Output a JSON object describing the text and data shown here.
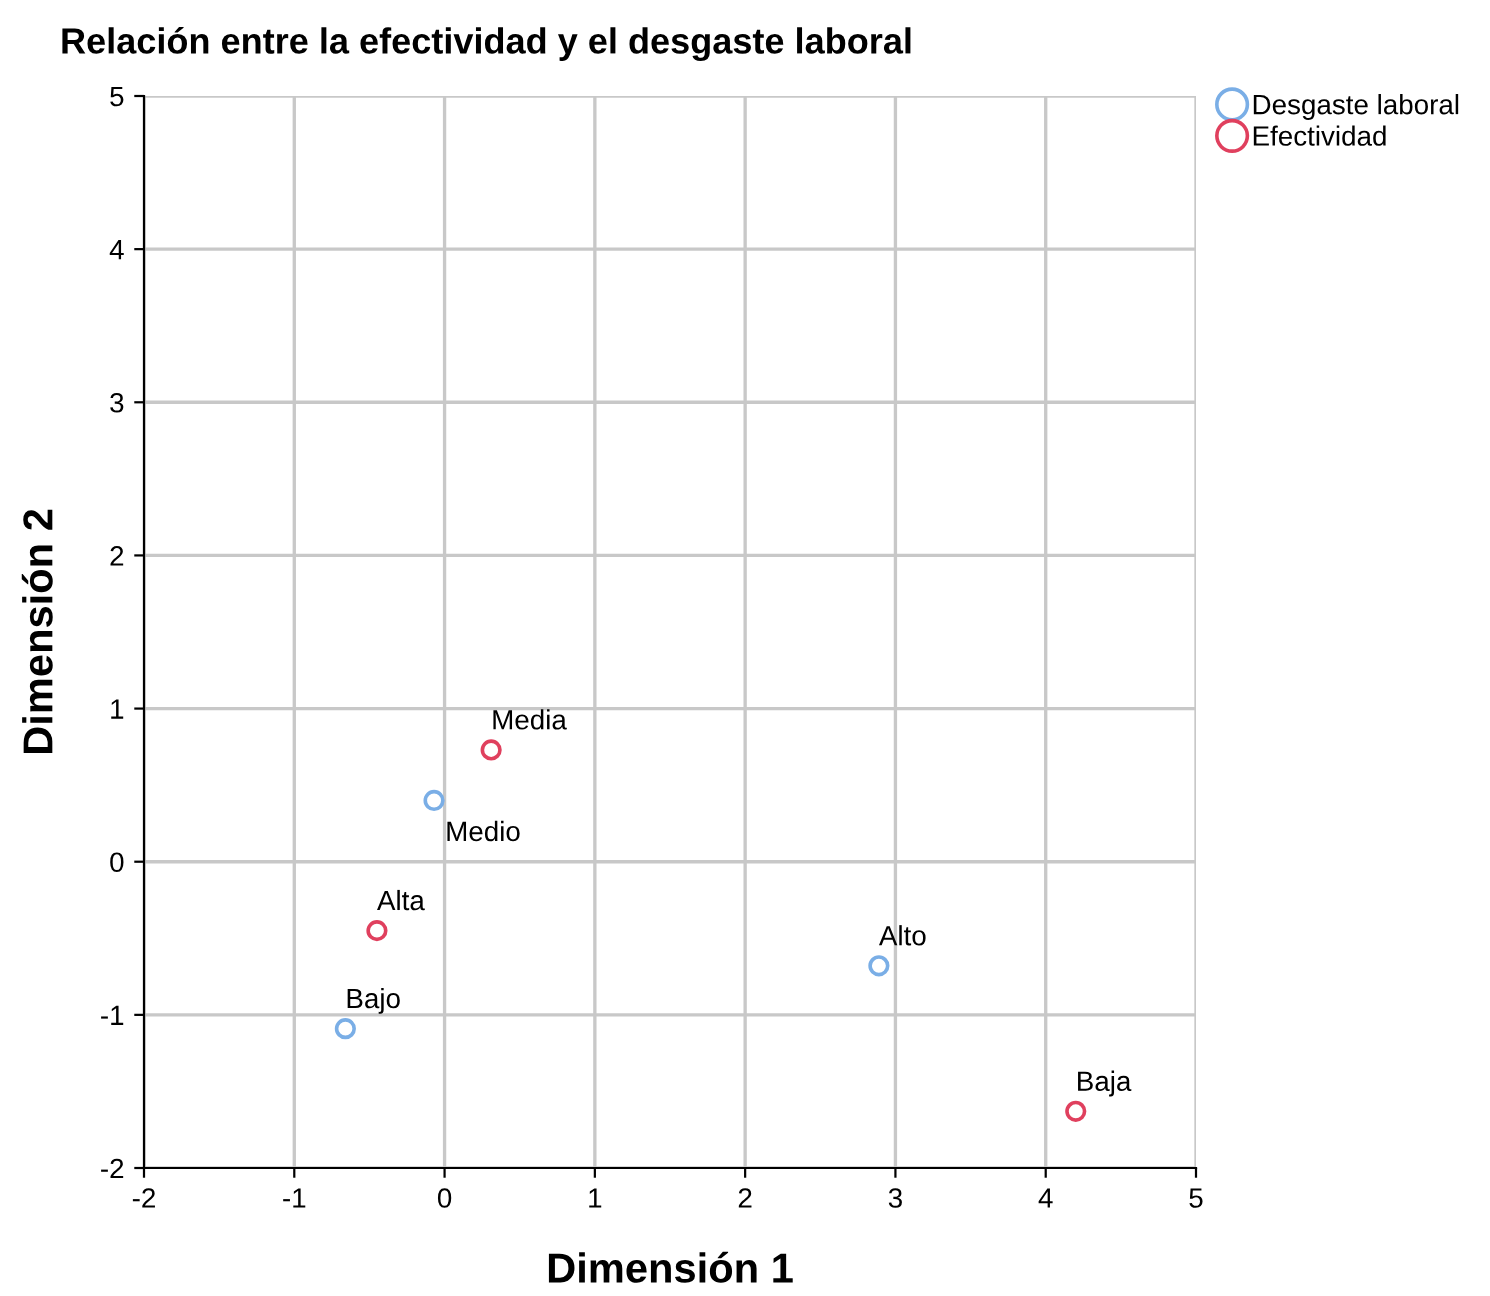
{
  "chart_data": {
    "type": "scatter",
    "title": "Relación entre la efectividad y el desgaste laboral",
    "xlabel": "Dimensión 1",
    "ylabel": "Dimensión 2",
    "series": [
      {
        "name": "Desgaste laboral",
        "color": "#7aaee6",
        "x": [
          -0.07,
          -0.66,
          2.89
        ],
        "values": [
          0.4,
          -1.09,
          -0.68
        ]
      },
      {
        "name": "Efectividad",
        "color": "#e0405e",
        "x": [
          0.31,
          -0.45,
          4.2
        ],
        "values": [
          0.73,
          -0.45,
          -1.63
        ]
      }
    ],
    "annotations": [
      {
        "text": "Medio",
        "x": -0.07,
        "y": 0.4
      },
      {
        "text": "Bajo",
        "x": -0.66,
        "y": -1.09
      },
      {
        "text": "Alto",
        "x": 2.89,
        "y": -0.68
      },
      {
        "text": "Media",
        "x": 0.31,
        "y": 0.73
      },
      {
        "text": "Alta",
        "x": -0.45,
        "y": -0.45
      },
      {
        "text": "Baja",
        "x": 4.2,
        "y": -1.63
      }
    ],
    "xlim": [
      -2,
      5
    ],
    "ylim": [
      -2,
      5
    ],
    "xticks": [
      -2,
      -1,
      0,
      1,
      2,
      3,
      4,
      5
    ],
    "yticks": [
      -2,
      -1,
      0,
      1,
      2,
      3,
      4,
      5
    ],
    "grid": true,
    "legend": "top right",
    "marker": "circle"
  }
}
